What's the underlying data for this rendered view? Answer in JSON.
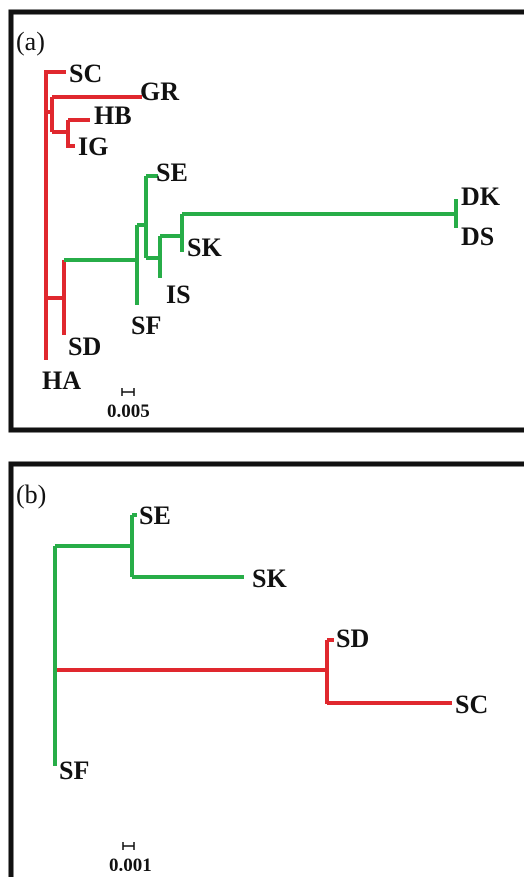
{
  "colors": {
    "red": "#e0282e",
    "green": "#27ad48",
    "frame": "#111111"
  },
  "panel_a": {
    "label": "(a)",
    "taxa": {
      "SC": "SC",
      "GR": "GR",
      "HB": "HB",
      "IG": "IG",
      "SE": "SE",
      "DK": "DK",
      "DS": "DS",
      "SK": "SK",
      "IS": "IS",
      "SF": "SF",
      "SD": "SD",
      "HA": "HA"
    },
    "scale_label": "0.005"
  },
  "panel_b": {
    "label": "(b)",
    "taxa": {
      "SE": "SE",
      "SK": "SK",
      "SD": "SD",
      "SC": "SC",
      "SF": "SF"
    },
    "scale_label": "0.001"
  }
}
